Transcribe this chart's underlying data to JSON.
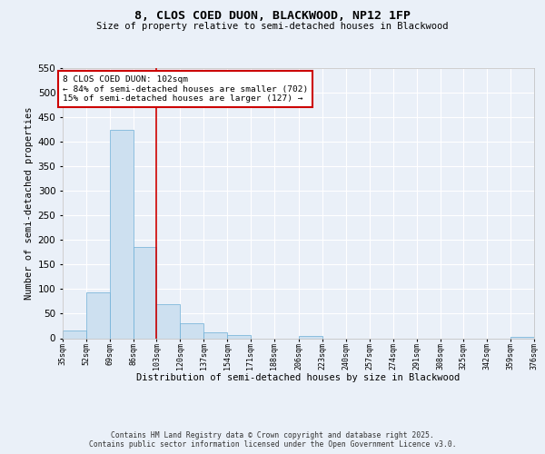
{
  "title1": "8, CLOS COED DUON, BLACKWOOD, NP12 1FP",
  "title2": "Size of property relative to semi-detached houses in Blackwood",
  "xlabel": "Distribution of semi-detached houses by size in Blackwood",
  "ylabel": "Number of semi-detached properties",
  "bar_edges": [
    35,
    52,
    69,
    86,
    103,
    120,
    137,
    154,
    171,
    188,
    206,
    223,
    240,
    257,
    274,
    291,
    308,
    325,
    342,
    359,
    376
  ],
  "bar_heights": [
    15,
    93,
    425,
    185,
    69,
    31,
    12,
    7,
    0,
    0,
    5,
    0,
    0,
    0,
    0,
    0,
    0,
    0,
    0,
    3
  ],
  "bar_color": "#cde0f0",
  "bar_edgecolor": "#6baed6",
  "vline_x": 103,
  "vline_color": "#cc0000",
  "ylim": [
    0,
    550
  ],
  "annotation_title": "8 CLOS COED DUON: 102sqm",
  "annotation_line1": "← 84% of semi-detached houses are smaller (702)",
  "annotation_line2": "15% of semi-detached houses are larger (127) →",
  "annotation_box_color": "#cc0000",
  "footer1": "Contains HM Land Registry data © Crown copyright and database right 2025.",
  "footer2": "Contains public sector information licensed under the Open Government Licence v3.0.",
  "bg_color": "#eaf0f8",
  "plot_bg_color": "#eaf0f8",
  "grid_color": "#ffffff",
  "yticks": [
    0,
    50,
    100,
    150,
    200,
    250,
    300,
    350,
    400,
    450,
    500,
    550
  ],
  "tick_labels": [
    "35sqm",
    "52sqm",
    "69sqm",
    "86sqm",
    "103sqm",
    "120sqm",
    "137sqm",
    "154sqm",
    "171sqm",
    "188sqm",
    "206sqm",
    "223sqm",
    "240sqm",
    "257sqm",
    "274sqm",
    "291sqm",
    "308sqm",
    "325sqm",
    "342sqm",
    "359sqm",
    "376sqm"
  ]
}
